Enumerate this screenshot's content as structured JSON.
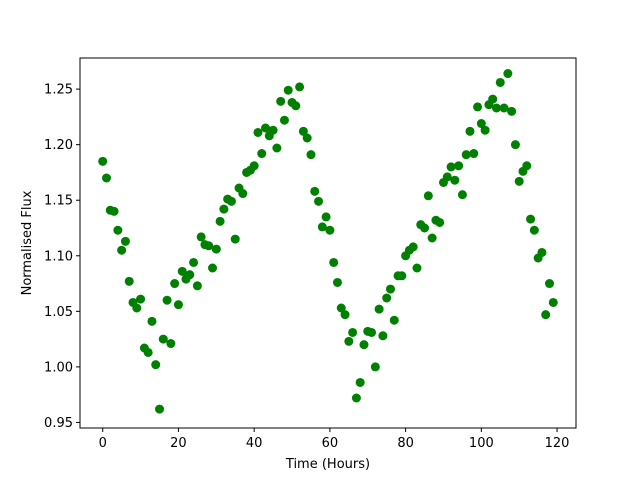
{
  "chart_data": {
    "type": "scatter",
    "title": "",
    "xlabel": "Time (Hours)",
    "ylabel": "Normalised Flux",
    "xlim": [
      -6,
      125
    ],
    "ylim": [
      0.945,
      1.278
    ],
    "xticks": [
      0,
      20,
      40,
      60,
      80,
      100,
      120
    ],
    "yticks": [
      0.95,
      1.0,
      1.05,
      1.1,
      1.15,
      1.2,
      1.25
    ],
    "xtick_labels": [
      "0",
      "20",
      "40",
      "60",
      "80",
      "100",
      "120"
    ],
    "ytick_labels": [
      "0.95",
      "1.00",
      "1.05",
      "1.10",
      "1.15",
      "1.20",
      "1.25"
    ],
    "grid": false,
    "marker_color": "#008000",
    "series": [
      {
        "points": [
          [
            0,
            1.185
          ],
          [
            1,
            1.17
          ],
          [
            2,
            1.141
          ],
          [
            3,
            1.14
          ],
          [
            4,
            1.123
          ],
          [
            5,
            1.105
          ],
          [
            6,
            1.113
          ],
          [
            7,
            1.077
          ],
          [
            8,
            1.058
          ],
          [
            9,
            1.053
          ],
          [
            10,
            1.061
          ],
          [
            11,
            1.017
          ],
          [
            12,
            1.013
          ],
          [
            13,
            1.041
          ],
          [
            14,
            1.002
          ],
          [
            15,
            0.962
          ],
          [
            16,
            1.025
          ],
          [
            17,
            1.06
          ],
          [
            18,
            1.021
          ],
          [
            19,
            1.075
          ],
          [
            20,
            1.056
          ],
          [
            21,
            1.086
          ],
          [
            22,
            1.079
          ],
          [
            23,
            1.083
          ],
          [
            24,
            1.094
          ],
          [
            25,
            1.073
          ],
          [
            26,
            1.117
          ],
          [
            27,
            1.11
          ],
          [
            28,
            1.109
          ],
          [
            29,
            1.089
          ],
          [
            30,
            1.106
          ],
          [
            31,
            1.131
          ],
          [
            32,
            1.142
          ],
          [
            33,
            1.151
          ],
          [
            34,
            1.149
          ],
          [
            35,
            1.115
          ],
          [
            36,
            1.161
          ],
          [
            37,
            1.156
          ],
          [
            38,
            1.175
          ],
          [
            39,
            1.177
          ],
          [
            40,
            1.181
          ],
          [
            41,
            1.211
          ],
          [
            42,
            1.192
          ],
          [
            43,
            1.215
          ],
          [
            44,
            1.208
          ],
          [
            45,
            1.213
          ],
          [
            46,
            1.197
          ],
          [
            47,
            1.239
          ],
          [
            48,
            1.222
          ],
          [
            49,
            1.249
          ],
          [
            50,
            1.238
          ],
          [
            51,
            1.235
          ],
          [
            52,
            1.252
          ],
          [
            53,
            1.212
          ],
          [
            54,
            1.206
          ],
          [
            55,
            1.191
          ],
          [
            56,
            1.158
          ],
          [
            57,
            1.149
          ],
          [
            58,
            1.126
          ],
          [
            59,
            1.135
          ],
          [
            60,
            1.123
          ],
          [
            61,
            1.094
          ],
          [
            62,
            1.076
          ],
          [
            63,
            1.053
          ],
          [
            64,
            1.047
          ],
          [
            65,
            1.023
          ],
          [
            66,
            1.031
          ],
          [
            67,
            0.972
          ],
          [
            68,
            0.986
          ],
          [
            69,
            1.02
          ],
          [
            70,
            1.032
          ],
          [
            71,
            1.031
          ],
          [
            72,
            1.0
          ],
          [
            73,
            1.052
          ],
          [
            74,
            1.028
          ],
          [
            75,
            1.062
          ],
          [
            76,
            1.07
          ],
          [
            77,
            1.042
          ],
          [
            78,
            1.082
          ],
          [
            79,
            1.082
          ],
          [
            80,
            1.1
          ],
          [
            81,
            1.105
          ],
          [
            82,
            1.108
          ],
          [
            83,
            1.089
          ],
          [
            84,
            1.128
          ],
          [
            85,
            1.125
          ],
          [
            86,
            1.154
          ],
          [
            87,
            1.116
          ],
          [
            88,
            1.132
          ],
          [
            89,
            1.13
          ],
          [
            90,
            1.166
          ],
          [
            91,
            1.171
          ],
          [
            92,
            1.18
          ],
          [
            93,
            1.168
          ],
          [
            94,
            1.181
          ],
          [
            95,
            1.155
          ],
          [
            96,
            1.191
          ],
          [
            97,
            1.212
          ],
          [
            98,
            1.192
          ],
          [
            99,
            1.234
          ],
          [
            100,
            1.219
          ],
          [
            101,
            1.213
          ],
          [
            102,
            1.236
          ],
          [
            103,
            1.241
          ],
          [
            104,
            1.233
          ],
          [
            105,
            1.256
          ],
          [
            106,
            1.233
          ],
          [
            107,
            1.264
          ],
          [
            108,
            1.23
          ],
          [
            109,
            1.2
          ],
          [
            110,
            1.167
          ],
          [
            111,
            1.176
          ],
          [
            112,
            1.181
          ],
          [
            113,
            1.133
          ],
          [
            114,
            1.123
          ],
          [
            115,
            1.098
          ],
          [
            116,
            1.103
          ],
          [
            117,
            1.047
          ],
          [
            118,
            1.075
          ],
          [
            119,
            1.058
          ]
        ]
      }
    ]
  }
}
